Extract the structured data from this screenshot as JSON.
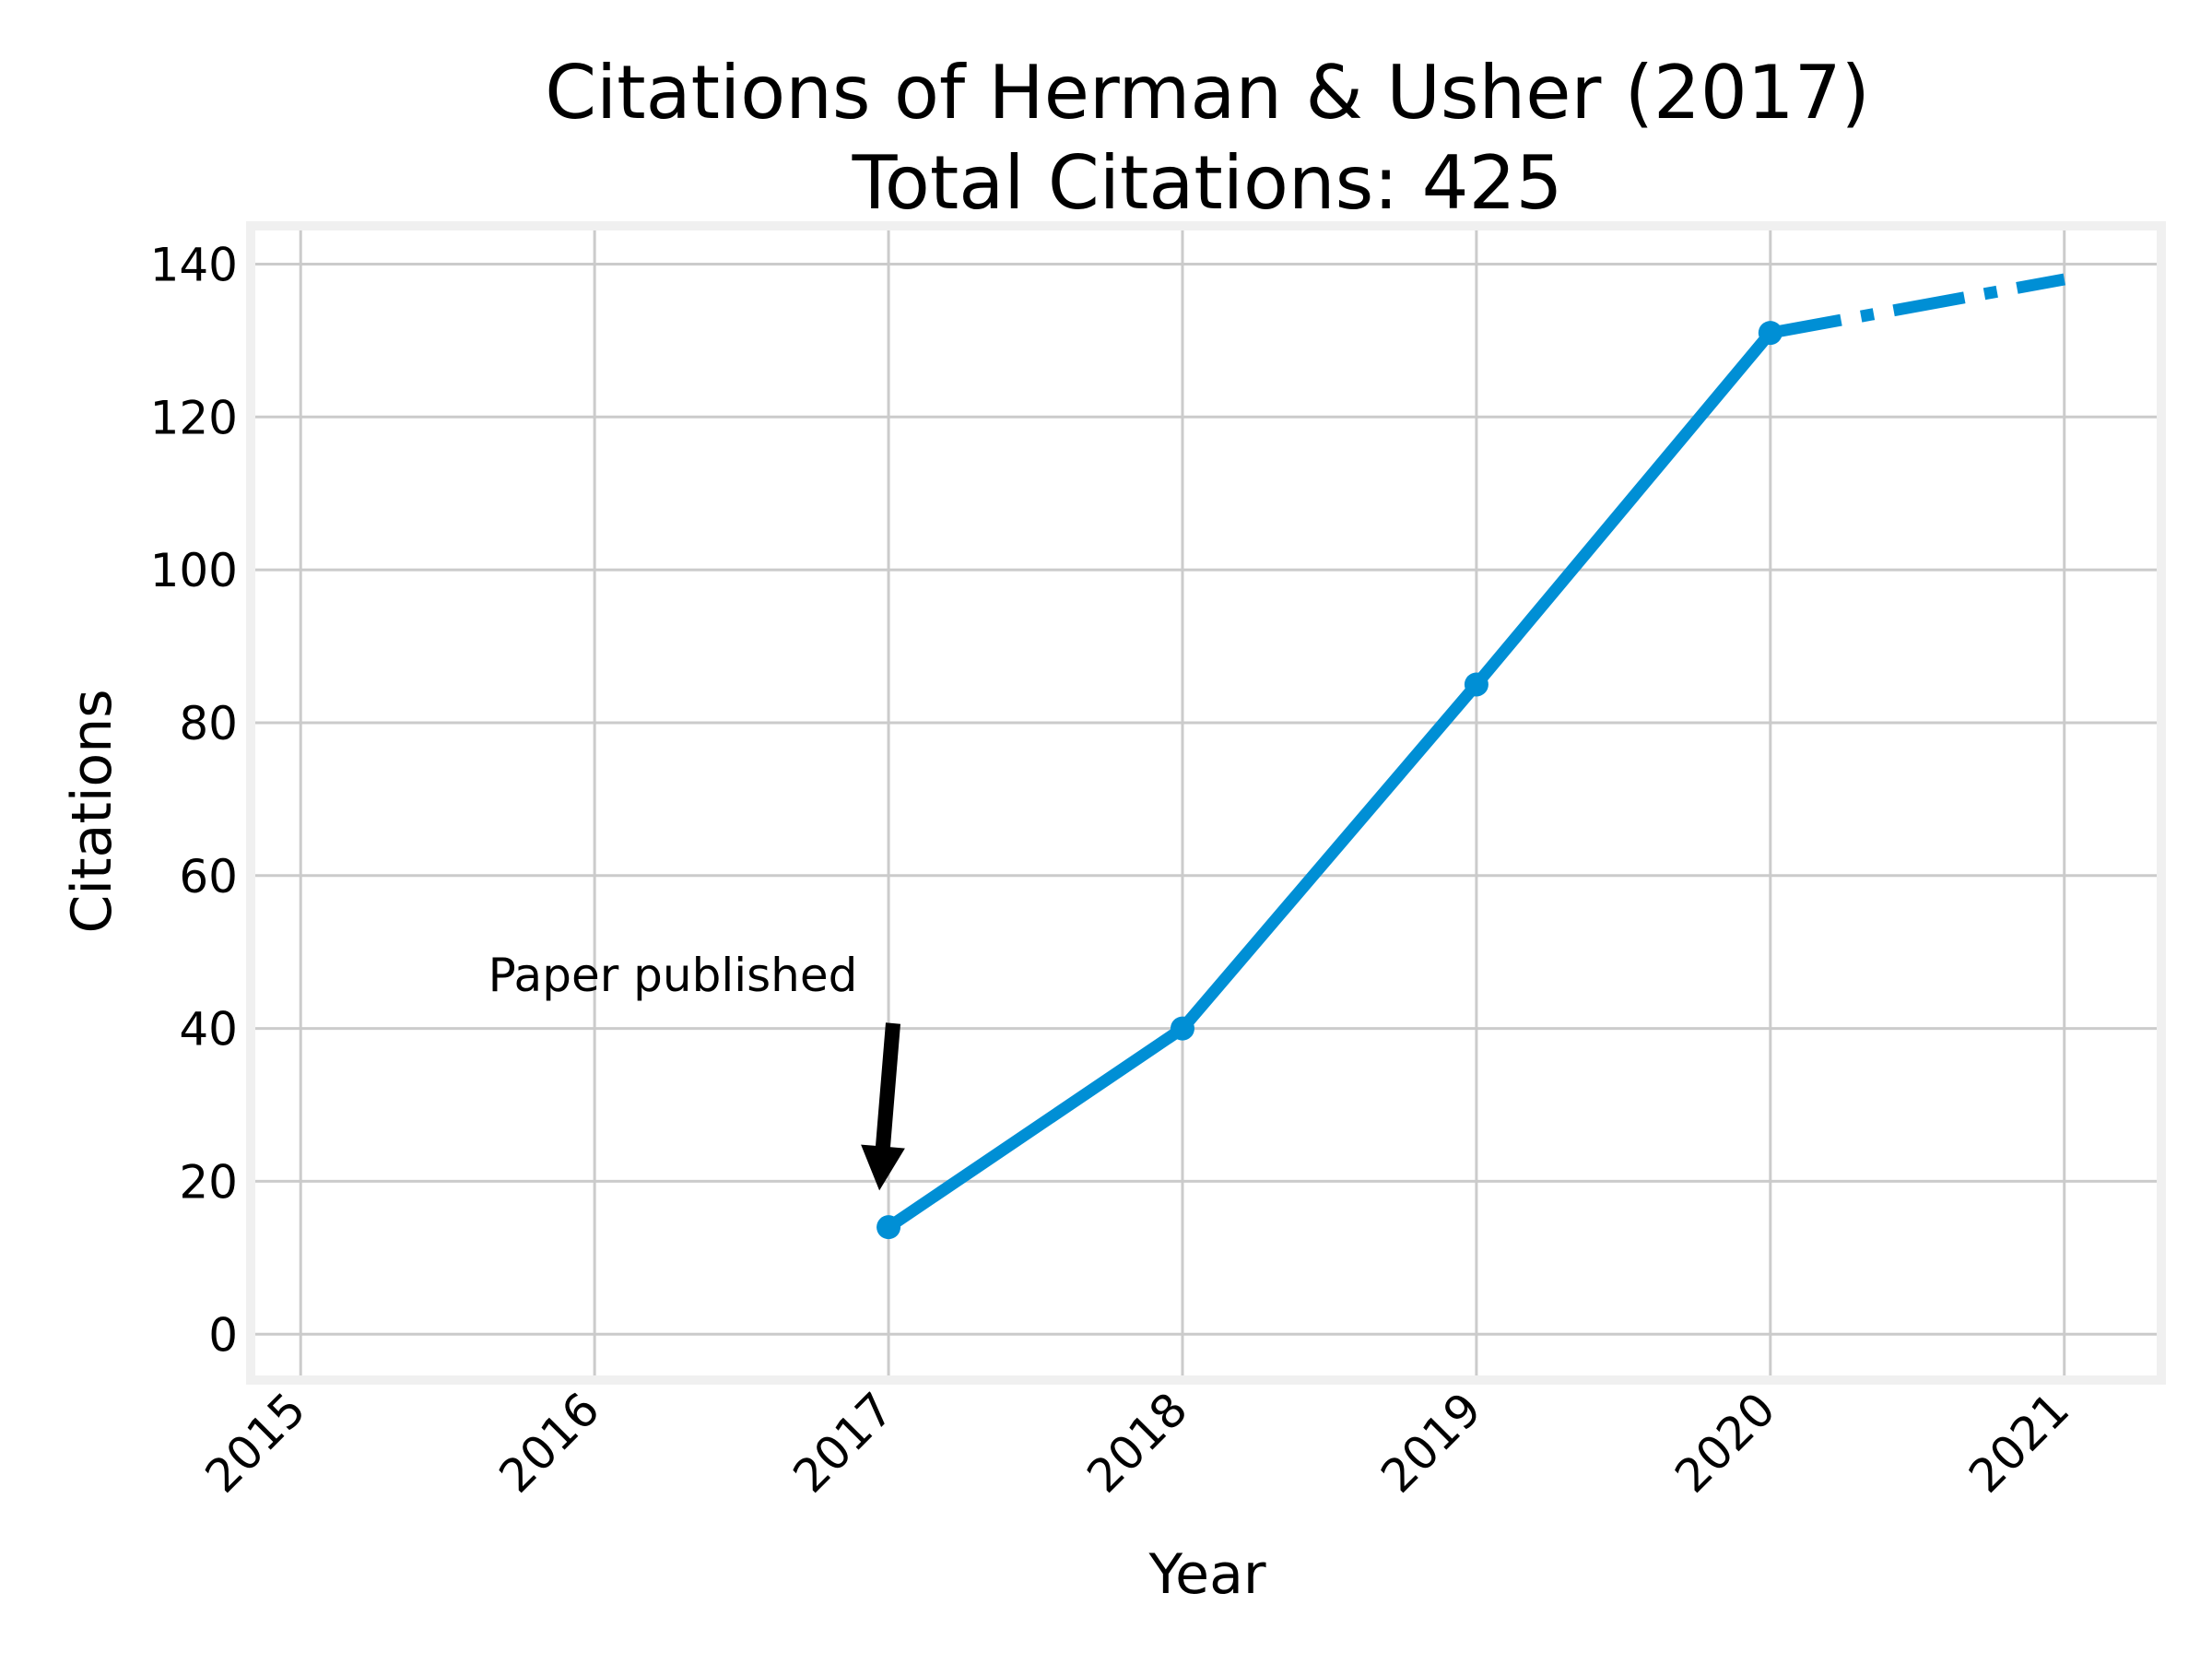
{
  "chart_data": {
    "type": "line",
    "title_line1": "Citations of Herman & Usher (2017)",
    "title_line2": "Total Citations: 425",
    "xlabel": "Year",
    "ylabel": "Citations",
    "x_ticks": [
      "2015",
      "2016",
      "2017",
      "2018",
      "2019",
      "2020",
      "2021"
    ],
    "y_ticks": [
      "0",
      "20",
      "40",
      "60",
      "80",
      "100",
      "120",
      "140"
    ],
    "xlim": [
      2014.83,
      2021.33
    ],
    "ylim": [
      -6,
      145
    ],
    "grid": true,
    "series": [
      {
        "style": "solid",
        "markers": true,
        "points": [
          {
            "x": 2017,
            "y": 14
          },
          {
            "x": 2018,
            "y": 40
          },
          {
            "x": 2019,
            "y": 85
          },
          {
            "x": 2020,
            "y": 131
          }
        ]
      },
      {
        "style": "dash-dot",
        "markers": false,
        "points": [
          {
            "x": 2020,
            "y": 131
          },
          {
            "x": 2021,
            "y": 138
          }
        ]
      }
    ],
    "annotation": {
      "text": "Paper published",
      "target": {
        "x": 2017,
        "y": 20
      }
    },
    "colors": {
      "line": "#008fd5",
      "grid": "#cbcbcb",
      "frame": "#f0f0f0",
      "arrow": "#000000"
    }
  }
}
